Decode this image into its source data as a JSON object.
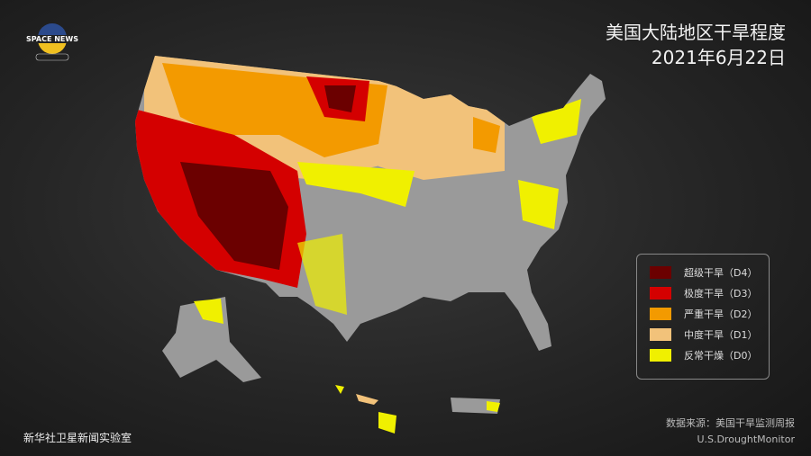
{
  "header": {
    "title": "美国大陆地区干旱程度",
    "date": "2021年6月22日"
  },
  "logo": {
    "text": "SPACE NEWS"
  },
  "legend": [
    {
      "label": "超级干旱（D4）",
      "color": "#6b0000"
    },
    {
      "label": "极度干旱（D3）",
      "color": "#d40000"
    },
    {
      "label": "严重干旱（D2）",
      "color": "#f39a00"
    },
    {
      "label": "中度干旱（D1）",
      "color": "#f2c27a"
    },
    {
      "label": "反常干燥（D0）",
      "color": "#f0f000"
    }
  ],
  "colors": {
    "no_drought": "#9a9a9a"
  },
  "source": {
    "line1": "数据来源：美国干旱监测周报",
    "line2": "U.S.DroughtMonitor"
  },
  "footer": {
    "credit": "新华社卫星新闻实验室"
  }
}
